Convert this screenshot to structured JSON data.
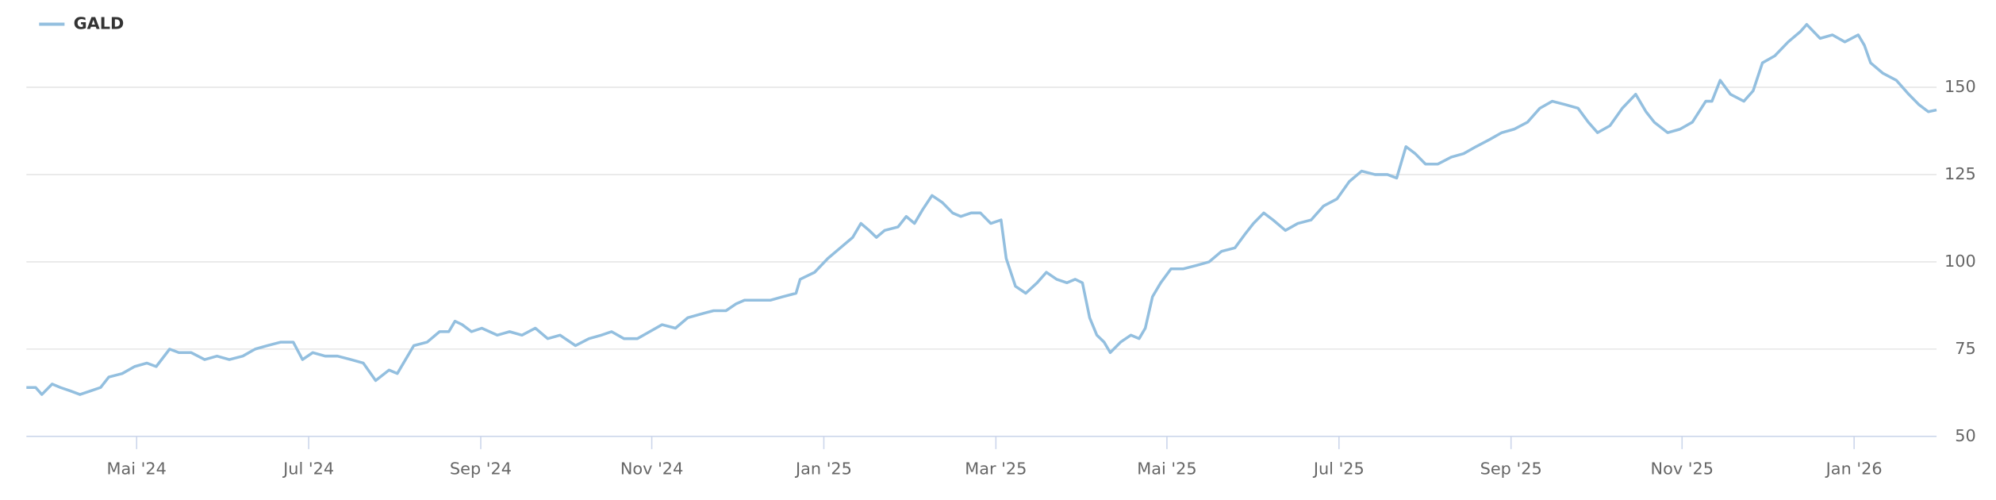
{
  "chart_data": {
    "type": "line",
    "legend": "top-left",
    "grid": true,
    "xlim": [
      2024.226,
      2026.08
    ],
    "xticks": [
      {
        "value": 2024.333,
        "label": "Mai '24"
      },
      {
        "value": 2024.5,
        "label": "Jul '24"
      },
      {
        "value": 2024.667,
        "label": "Sep '24"
      },
      {
        "value": 2024.833,
        "label": "Nov '24"
      },
      {
        "value": 2025,
        "label": "Jan '25"
      },
      {
        "value": 2025.167,
        "label": "Mar '25"
      },
      {
        "value": 2025.333,
        "label": "Mai '25"
      },
      {
        "value": 2025.5,
        "label": "Jul '25"
      },
      {
        "value": 2025.667,
        "label": "Sep '25"
      },
      {
        "value": 2025.833,
        "label": "Nov '25"
      },
      {
        "value": 2026,
        "label": "Jan '26"
      }
    ],
    "ylim": [
      50,
      175
    ],
    "yticks": [
      50,
      75,
      100,
      125,
      150
    ],
    "x": [
      2024.226,
      2024.235,
      2024.241,
      2024.251,
      2024.259,
      2024.269,
      2024.278,
      2024.288,
      2024.298,
      2024.306,
      2024.319,
      2024.331,
      2024.343,
      2024.352,
      2024.365,
      2024.374,
      2024.386,
      2024.399,
      2024.411,
      2024.423,
      2024.436,
      2024.448,
      2024.46,
      2024.473,
      2024.485,
      2024.494,
      2024.504,
      2024.516,
      2024.528,
      2024.541,
      2024.553,
      2024.565,
      2024.578,
      2024.586,
      2024.594,
      2024.602,
      2024.615,
      2024.627,
      2024.636,
      2024.642,
      2024.649,
      2024.658,
      2024.668,
      2024.683,
      2024.695,
      2024.707,
      2024.72,
      2024.732,
      2024.744,
      2024.759,
      2024.772,
      2024.784,
      2024.794,
      2024.806,
      2024.819,
      2024.831,
      2024.843,
      2024.856,
      2024.868,
      2024.88,
      2024.893,
      2024.905,
      2024.915,
      2024.923,
      2024.936,
      2024.948,
      2024.96,
      2024.973,
      2024.977,
      2024.991,
      2025.004,
      2025.016,
      2025.028,
      2025.036,
      2025.044,
      2025.051,
      2025.059,
      2025.072,
      2025.08,
      2025.088,
      2025.096,
      2025.105,
      2025.115,
      2025.125,
      2025.133,
      2025.143,
      2025.152,
      2025.162,
      2025.172,
      2025.177,
      2025.186,
      2025.196,
      2025.207,
      2025.216,
      2025.226,
      2025.236,
      2025.244,
      2025.251,
      2025.258,
      2025.265,
      2025.272,
      2025.278,
      2025.288,
      2025.298,
      2025.306,
      2025.312,
      2025.319,
      2025.327,
      2025.337,
      2025.349,
      2025.362,
      2025.374,
      2025.386,
      2025.399,
      2025.409,
      2025.417,
      2025.427,
      2025.436,
      2025.448,
      2025.46,
      2025.473,
      2025.485,
      2025.498,
      2025.51,
      2025.522,
      2025.535,
      2025.547,
      2025.556,
      2025.565,
      2025.574,
      2025.584,
      2025.596,
      2025.609,
      2025.621,
      2025.633,
      2025.646,
      2025.658,
      2025.67,
      2025.683,
      2025.695,
      2025.707,
      2025.72,
      2025.732,
      2025.742,
      2025.751,
      2025.763,
      2025.775,
      2025.788,
      2025.798,
      2025.806,
      2025.819,
      2025.831,
      2025.843,
      2025.856,
      2025.862,
      2025.87,
      2025.88,
      2025.893,
      2025.902,
      2025.911,
      2025.923,
      2025.936,
      2025.948,
      2025.954,
      2025.967,
      2025.979,
      2025.991,
      2026.004,
      2026.01,
      2026.016,
      2026.028,
      2026.041,
      2026.053,
      2026.063,
      2026.072,
      2026.08
    ],
    "series": [
      {
        "name": "GALD",
        "color": "#93bfdf",
        "values": [
          64,
          64,
          62,
          65,
          64,
          63,
          62,
          63,
          64,
          67,
          68,
          70,
          71,
          70,
          75,
          74,
          74,
          72,
          73,
          72,
          73,
          75,
          76,
          77,
          77,
          72,
          74,
          73,
          73,
          72,
          71,
          66,
          69,
          68,
          72,
          76,
          77,
          80,
          80,
          83,
          82,
          80,
          81,
          79,
          80,
          79,
          81,
          78,
          79,
          76,
          78,
          79,
          80,
          78,
          78,
          80,
          82,
          81,
          84,
          85,
          86,
          86,
          88,
          89,
          89,
          89,
          90,
          91,
          95,
          97,
          101,
          104,
          107,
          111,
          109,
          107,
          109,
          110,
          113,
          111,
          115,
          119,
          117,
          114,
          113,
          114,
          114,
          111,
          112,
          101,
          93,
          91,
          94,
          97,
          95,
          94,
          95,
          94,
          84,
          79,
          77,
          74,
          77,
          79,
          78,
          81,
          90,
          94,
          98,
          98,
          99,
          100,
          103,
          104,
          108,
          111,
          114,
          112,
          109,
          111,
          112,
          116,
          118,
          123,
          126,
          125,
          125,
          124,
          133,
          131,
          128,
          128,
          130,
          131,
          133,
          135,
          137,
          138,
          140,
          144,
          146,
          145,
          144,
          140,
          137,
          139,
          144,
          148,
          143,
          140,
          137,
          138,
          140,
          146,
          146,
          152,
          148,
          146,
          149,
          157,
          159,
          163,
          166,
          168,
          164,
          165,
          163,
          165,
          162,
          157,
          154,
          152,
          148,
          145,
          143,
          143.5
        ]
      }
    ]
  }
}
